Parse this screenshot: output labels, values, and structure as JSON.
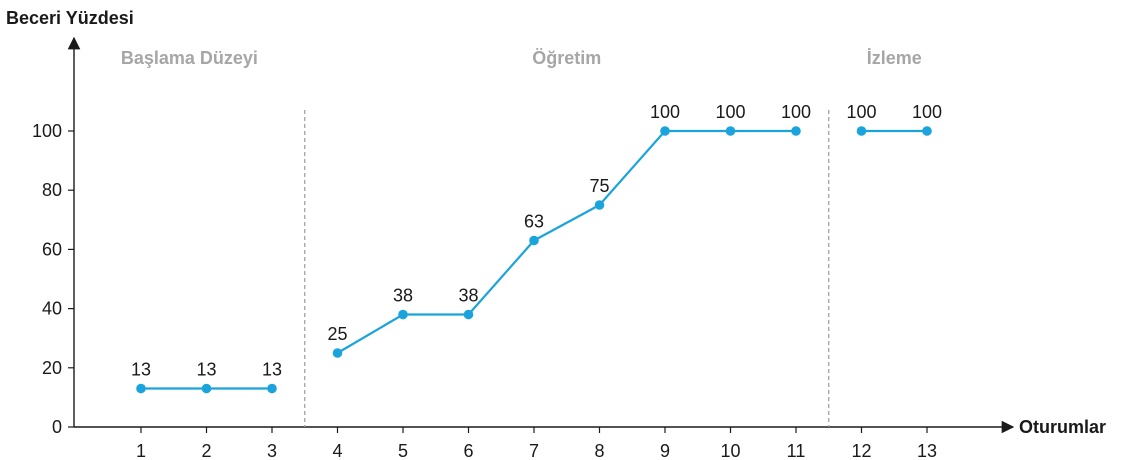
{
  "chart_data": {
    "type": "line",
    "ylabel": "Beceri Yüzdesi",
    "xlabel": "Oturumlar",
    "ylim": [
      0,
      100
    ],
    "yticks": [
      0,
      20,
      40,
      60,
      80,
      100
    ],
    "xticks": [
      1,
      2,
      3,
      4,
      5,
      6,
      7,
      8,
      9,
      10,
      11,
      12,
      13
    ],
    "phases": [
      {
        "name": "Başlama Düzeyi",
        "sessions": [
          1,
          2,
          3
        ]
      },
      {
        "name": "Öğretim",
        "sessions": [
          4,
          5,
          6,
          7,
          8,
          9,
          10,
          11
        ]
      },
      {
        "name": "İzleme",
        "sessions": [
          12,
          13
        ]
      }
    ],
    "phase_separators_after": [
      3,
      11
    ],
    "series": [
      {
        "color": "#1aa3dc",
        "points": [
          {
            "x": 1,
            "y": 13
          },
          {
            "x": 2,
            "y": 13
          },
          {
            "x": 3,
            "y": 13
          },
          {
            "x": 4,
            "y": 25
          },
          {
            "x": 5,
            "y": 38
          },
          {
            "x": 6,
            "y": 38
          },
          {
            "x": 7,
            "y": 63
          },
          {
            "x": 8,
            "y": 75
          },
          {
            "x": 9,
            "y": 100
          },
          {
            "x": 10,
            "y": 100
          },
          {
            "x": 11,
            "y": 100
          },
          {
            "x": 12,
            "y": 100
          },
          {
            "x": 13,
            "y": 100
          }
        ]
      }
    ],
    "grid": false
  }
}
